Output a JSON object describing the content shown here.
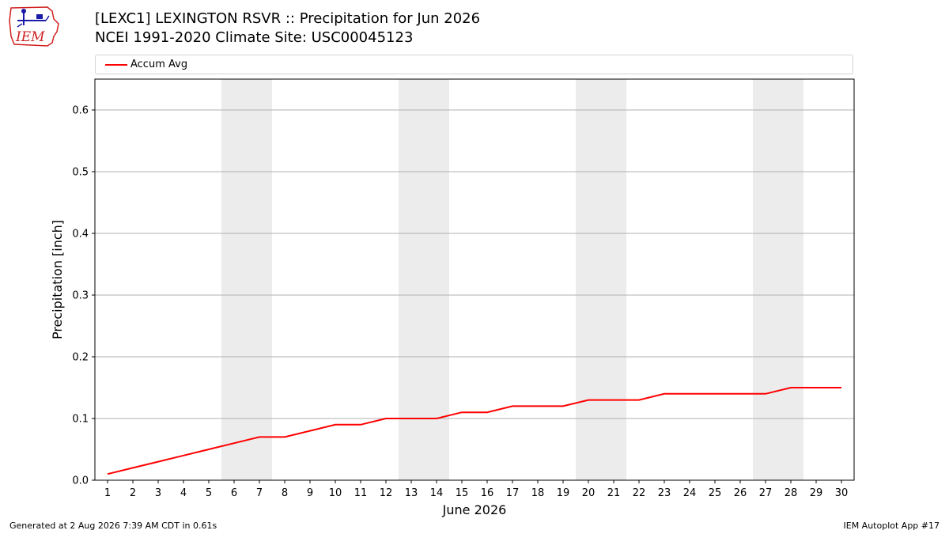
{
  "header": {
    "title_line1": "[LEXC1] LEXINGTON RSVR :: Precipitation for Jun 2026",
    "title_line2": "NCEI 1991-2020 Climate Site: USC00045123"
  },
  "logo": {
    "text": "IEM",
    "icon": "iem-logo-icon"
  },
  "footer": {
    "left": "Generated at 2 Aug 2026 7:39 AM CDT in 0.61s",
    "right": "IEM Autoplot App #17"
  },
  "chart_data": {
    "type": "line",
    "xlabel": "June 2026",
    "ylabel": "Precipitation [inch]",
    "x": [
      1,
      2,
      3,
      4,
      5,
      6,
      7,
      8,
      9,
      10,
      11,
      12,
      13,
      14,
      15,
      16,
      17,
      18,
      19,
      20,
      21,
      22,
      23,
      24,
      25,
      26,
      27,
      28,
      29,
      30
    ],
    "series": [
      {
        "name": "Accum Avg",
        "color": "#ff0000",
        "values": [
          0.01,
          0.02,
          0.03,
          0.04,
          0.05,
          0.06,
          0.07,
          0.07,
          0.08,
          0.09,
          0.09,
          0.1,
          0.1,
          0.1,
          0.11,
          0.11,
          0.12,
          0.12,
          0.12,
          0.13,
          0.13,
          0.13,
          0.14,
          0.14,
          0.14,
          0.14,
          0.14,
          0.15,
          0.15,
          0.15
        ]
      }
    ],
    "xlim": [
      0.5,
      30.5
    ],
    "ylim": [
      0,
      0.65
    ],
    "yticks": [
      "0.0",
      "0.1",
      "0.2",
      "0.3",
      "0.4",
      "0.5",
      "0.6"
    ],
    "grid": "horizontal",
    "legend_position": "top",
    "weekend_shading": [
      [
        6,
        7
      ],
      [
        13,
        14
      ],
      [
        20,
        21
      ],
      [
        27,
        28
      ]
    ],
    "shade_color": "#ececec"
  }
}
